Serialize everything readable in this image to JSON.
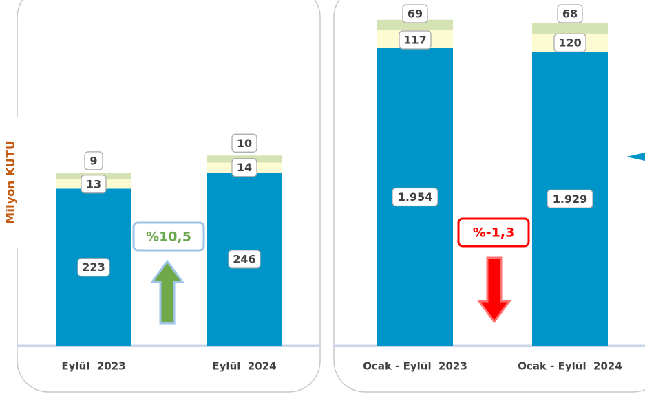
{
  "chart_data": [
    {
      "type": "bar",
      "stacked": true,
      "ylabel": "Milyon KUTU",
      "categories": [
        "Eylül  2023",
        "Eylül  2024"
      ],
      "series": [
        {
          "color": "#0095c8",
          "values": [
            223,
            246
          ]
        },
        {
          "color": "#fdfbd2",
          "values": [
            13,
            14
          ]
        },
        {
          "color": "#d5e3b4",
          "values": [
            9,
            10
          ]
        }
      ],
      "annotation": {
        "text": "%10,5",
        "color": "#6aa84f",
        "border": "#9dc3e6",
        "direction": "up"
      }
    },
    {
      "type": "bar",
      "stacked": true,
      "categories": [
        "Ocak - Eylül  2023",
        "Ocak - Eylül  2024"
      ],
      "series": [
        {
          "color": "#0095c8",
          "values": [
            1954,
            1929
          ],
          "value_labels": [
            "1.954",
            "1.929"
          ]
        },
        {
          "color": "#fdfbd2",
          "values": [
            117,
            120
          ]
        },
        {
          "color": "#d5e3b4",
          "values": [
            69,
            68
          ]
        }
      ],
      "annotation": {
        "text": "%-1,3",
        "color": "#ff0000",
        "border": "#ff0000",
        "direction": "down"
      }
    }
  ]
}
